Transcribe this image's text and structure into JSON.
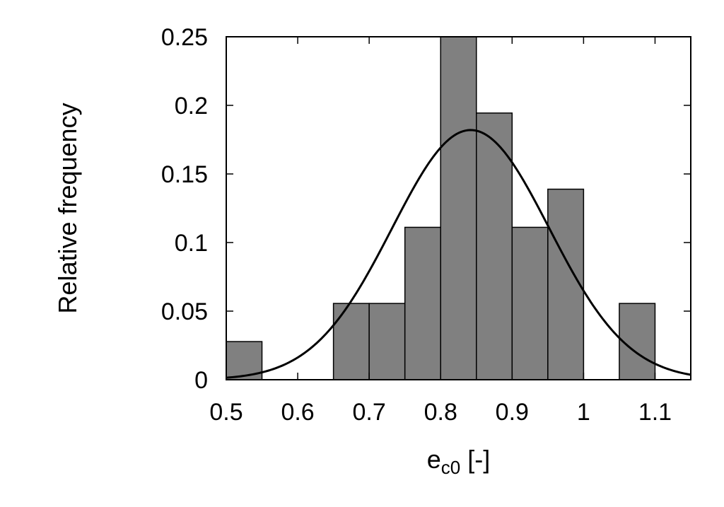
{
  "chart_data": {
    "type": "bar",
    "title": "",
    "xlabel": {
      "base": "e",
      "subscript": "c0",
      "suffix": " [-]"
    },
    "ylabel": "Relative frequency",
    "xlim": [
      0.5,
      1.15
    ],
    "ylim": [
      0,
      0.25
    ],
    "x_ticks": [
      0.5,
      0.6,
      0.7,
      0.8,
      0.9,
      1.0,
      1.1
    ],
    "x_tick_labels": [
      "0.5",
      "0.6",
      "0.7",
      "0.8",
      "0.9",
      "1",
      "1.1"
    ],
    "y_ticks": [
      0,
      0.05,
      0.1,
      0.15,
      0.2,
      0.25
    ],
    "y_tick_labels": [
      "0",
      "0.05",
      "0.1",
      "0.15",
      "0.2",
      "0.25"
    ],
    "bin_width": 0.05,
    "bins": [
      {
        "x0": 0.5,
        "x1": 0.55,
        "value": 0.0278
      },
      {
        "x0": 0.65,
        "x1": 0.7,
        "value": 0.0556
      },
      {
        "x0": 0.7,
        "x1": 0.75,
        "value": 0.0556
      },
      {
        "x0": 0.75,
        "x1": 0.8,
        "value": 0.1111
      },
      {
        "x0": 0.8,
        "x1": 0.85,
        "value": 0.25
      },
      {
        "x0": 0.85,
        "x1": 0.9,
        "value": 0.1944
      },
      {
        "x0": 0.9,
        "x1": 0.95,
        "value": 0.1111
      },
      {
        "x0": 0.95,
        "x1": 1.0,
        "value": 0.1389
      },
      {
        "x0": 1.05,
        "x1": 1.1,
        "value": 0.0556
      }
    ],
    "fit_curve": {
      "type": "normal",
      "mean": 0.842,
      "std": 0.11,
      "peak": 0.182
    },
    "grid": false,
    "colors": {
      "bar_fill": "#808080",
      "bar_stroke": "#000000",
      "curve": "#000000",
      "axis": "#000000"
    }
  }
}
